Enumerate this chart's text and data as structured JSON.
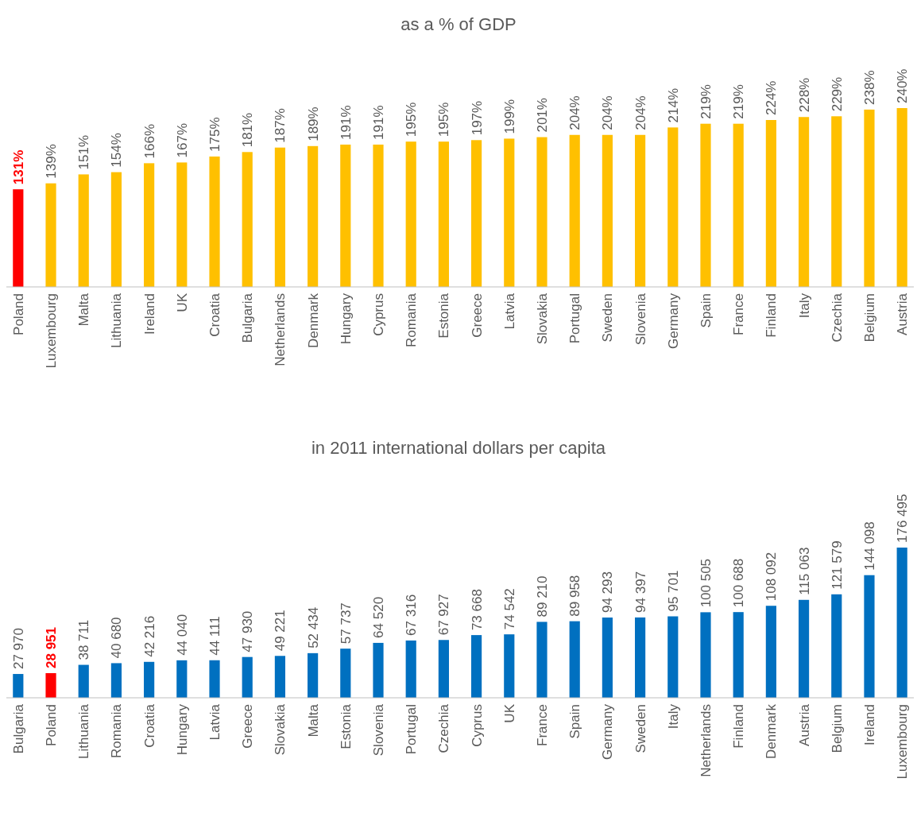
{
  "chart_data": [
    {
      "type": "bar",
      "title": "as a % of GDP",
      "color": "#ffc000",
      "categories": [
        "Poland",
        "Luxembourg",
        "Malta",
        "Lithuania",
        "Ireland",
        "UK",
        "Croatia",
        "Bulgaria",
        "Netherlands",
        "Denmark",
        "Hungary",
        "Cyprus",
        "Romania",
        "Estonia",
        "Greece",
        "Latvia",
        "Slovakia",
        "Portugal",
        "Sweden",
        "Slovenia",
        "Germany",
        "Spain",
        "France",
        "Finland",
        "Italy",
        "Czechia",
        "Belgium",
        "Austria"
      ],
      "values": [
        131,
        139,
        151,
        154,
        166,
        167,
        175,
        181,
        187,
        189,
        191,
        191,
        195,
        195,
        197,
        199,
        201,
        204,
        204,
        204,
        214,
        219,
        219,
        224,
        228,
        229,
        238,
        240
      ],
      "value_labels": [
        "131%",
        "139%",
        "151%",
        "154%",
        "166%",
        "167%",
        "175%",
        "181%",
        "187%",
        "189%",
        "191%",
        "191%",
        "195%",
        "195%",
        "197%",
        "199%",
        "201%",
        "204%",
        "204%",
        "204%",
        "214%",
        "219%",
        "219%",
        "224%",
        "228%",
        "229%",
        "238%",
        "240%"
      ],
      "colors": [
        "#ff0000",
        "#ffc000",
        "#ffc000",
        "#ffc000",
        "#ffc000",
        "#ffc000",
        "#ffc000",
        "#ffc000",
        "#ffc000",
        "#ffc000",
        "#ffc000",
        "#ffc000",
        "#ffc000",
        "#ffc000",
        "#ffc000",
        "#ffc000",
        "#ffc000",
        "#ffc000",
        "#ffc000",
        "#ffc000",
        "#ffc000",
        "#ffc000",
        "#ffc000",
        "#ffc000",
        "#ffc000",
        "#ffc000",
        "#ffc000",
        "#ffc000"
      ],
      "grid": false
    },
    {
      "type": "bar",
      "title": "in 2011 international dollars per capita",
      "color": "#0070c0",
      "categories": [
        "Bulgaria",
        "Poland",
        "Lithuania",
        "Romania",
        "Croatia",
        "Hungary",
        "Latvia",
        "Greece",
        "Slovakia",
        "Malta",
        "Estonia",
        "Slovenia",
        "Portugal",
        "Czechia",
        "Cyprus",
        "UK",
        "France",
        "Spain",
        "Germany",
        "Sweden",
        "Italy",
        "Netherlands",
        "Finland",
        "Denmark",
        "Austria",
        "Belgium",
        "Ireland",
        "Luxembourg"
      ],
      "values": [
        27970,
        28951,
        38711,
        40680,
        42216,
        44040,
        44111,
        47930,
        49221,
        52434,
        57737,
        64520,
        67316,
        67927,
        73668,
        74542,
        89210,
        89958,
        94293,
        94397,
        95701,
        100505,
        100688,
        108092,
        115063,
        121579,
        144098,
        176495
      ],
      "value_labels": [
        "27 970",
        "28 951",
        "38 711",
        "40 680",
        "42 216",
        "44 040",
        "44 111",
        "47 930",
        "49 221",
        "52 434",
        "57 737",
        "64 520",
        "67 316",
        "67 927",
        "73 668",
        "74 542",
        "89 210",
        "89 958",
        "94 293",
        "94 397",
        "95 701",
        "100 505",
        "100 688",
        "108 092",
        "115 063",
        "121 579",
        "144 098",
        "176 495"
      ],
      "colors": [
        "#0070c0",
        "#ff0000",
        "#0070c0",
        "#0070c0",
        "#0070c0",
        "#0070c0",
        "#0070c0",
        "#0070c0",
        "#0070c0",
        "#0070c0",
        "#0070c0",
        "#0070c0",
        "#0070c0",
        "#0070c0",
        "#0070c0",
        "#0070c0",
        "#0070c0",
        "#0070c0",
        "#0070c0",
        "#0070c0",
        "#0070c0",
        "#0070c0",
        "#0070c0",
        "#0070c0",
        "#0070c0",
        "#0070c0",
        "#0070c0",
        "#0070c0"
      ],
      "grid": false
    }
  ]
}
